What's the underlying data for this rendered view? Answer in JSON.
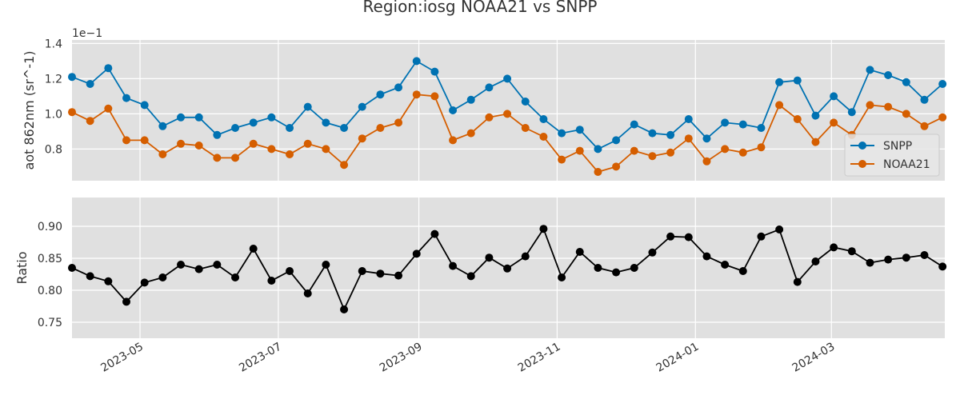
{
  "chart_data": {
    "title": "Region:iosg NOAA21 vs SNPP",
    "dates": [
      "2023-04-01",
      "2023-04-09",
      "2023-04-17",
      "2023-04-25",
      "2023-05-03",
      "2023-05-11",
      "2023-05-19",
      "2023-05-27",
      "2023-06-04",
      "2023-06-12",
      "2023-06-20",
      "2023-06-28",
      "2023-07-06",
      "2023-07-14",
      "2023-07-22",
      "2023-07-30",
      "2023-08-07",
      "2023-08-15",
      "2023-08-23",
      "2023-08-31",
      "2023-09-08",
      "2023-09-16",
      "2023-09-24",
      "2023-10-02",
      "2023-10-10",
      "2023-10-18",
      "2023-10-26",
      "2023-11-03",
      "2023-11-11",
      "2023-11-19",
      "2023-11-27",
      "2023-12-05",
      "2023-12-13",
      "2023-12-21",
      "2023-12-29",
      "2024-01-06",
      "2024-01-14",
      "2024-01-22",
      "2024-01-30",
      "2024-02-07",
      "2024-02-15",
      "2024-02-23",
      "2024-03-02",
      "2024-03-10",
      "2024-03-18",
      "2024-03-26",
      "2024-04-03",
      "2024-04-11",
      "2024-04-19"
    ],
    "x_range": [
      "2023-04-01",
      "2024-04-20"
    ],
    "x_ticks": [
      "2023-05",
      "2023-07",
      "2023-09",
      "2023-11",
      "2024-01",
      "2024-03"
    ],
    "panels": [
      {
        "type": "line",
        "ylabel": "aot 862nm (sr^-1)",
        "y_offset_text": "1e−1",
        "ylim": [
          0.62,
          1.42
        ],
        "y_ticks": [
          0.8,
          1.0,
          1.2,
          1.4
        ],
        "y_tick_labels": [
          "0.8",
          "1.0",
          "1.2",
          "1.4"
        ],
        "legend_position": "right",
        "series": [
          {
            "name": "SNPP",
            "color": "#0072b2",
            "values": [
              1.21,
              1.17,
              1.26,
              1.09,
              1.05,
              0.93,
              0.98,
              0.98,
              0.88,
              0.92,
              0.95,
              0.98,
              0.92,
              1.04,
              0.95,
              0.92,
              1.04,
              1.11,
              1.15,
              1.3,
              1.24,
              1.02,
              1.08,
              1.15,
              1.2,
              1.07,
              0.97,
              0.89,
              0.91,
              0.8,
              0.85,
              0.94,
              0.89,
              0.88,
              0.97,
              0.86,
              0.95,
              0.94,
              0.92,
              1.18,
              1.19,
              0.99,
              1.1,
              1.01,
              1.25,
              1.22,
              1.18,
              1.08,
              1.17
            ]
          },
          {
            "name": "NOAA21",
            "color": "#d55e00",
            "values": [
              1.01,
              0.96,
              1.03,
              0.85,
              0.85,
              0.77,
              0.83,
              0.82,
              0.75,
              0.75,
              0.83,
              0.8,
              0.77,
              0.83,
              0.8,
              0.71,
              0.86,
              0.92,
              0.95,
              1.11,
              1.1,
              0.85,
              0.89,
              0.98,
              1.0,
              0.92,
              0.87,
              0.74,
              0.79,
              0.67,
              0.7,
              0.79,
              0.76,
              0.78,
              0.86,
              0.73,
              0.8,
              0.78,
              0.81,
              1.05,
              0.97,
              0.84,
              0.95,
              0.88,
              1.05,
              1.04,
              1.0,
              0.93,
              0.98
            ]
          }
        ]
      },
      {
        "type": "line",
        "ylabel": "Ratio",
        "ylim": [
          0.725,
          0.945
        ],
        "y_ticks": [
          0.75,
          0.8,
          0.85,
          0.9
        ],
        "y_tick_labels": [
          "0.75",
          "0.80",
          "0.85",
          "0.90"
        ],
        "series": [
          {
            "color": "#000000",
            "values": [
              0.835,
              0.822,
              0.814,
              0.782,
              0.812,
              0.82,
              0.84,
              0.833,
              0.84,
              0.82,
              0.865,
              0.815,
              0.83,
              0.795,
              0.84,
              0.77,
              0.83,
              0.826,
              0.823,
              0.857,
              0.888,
              0.838,
              0.822,
              0.851,
              0.834,
              0.853,
              0.896,
              0.82,
              0.86,
              0.835,
              0.828,
              0.835,
              0.859,
              0.884,
              0.883,
              0.853,
              0.84,
              0.83,
              0.884,
              0.895,
              0.813,
              0.845,
              0.867,
              0.861,
              0.843,
              0.848,
              0.851,
              0.855,
              0.837
            ]
          }
        ]
      }
    ]
  }
}
